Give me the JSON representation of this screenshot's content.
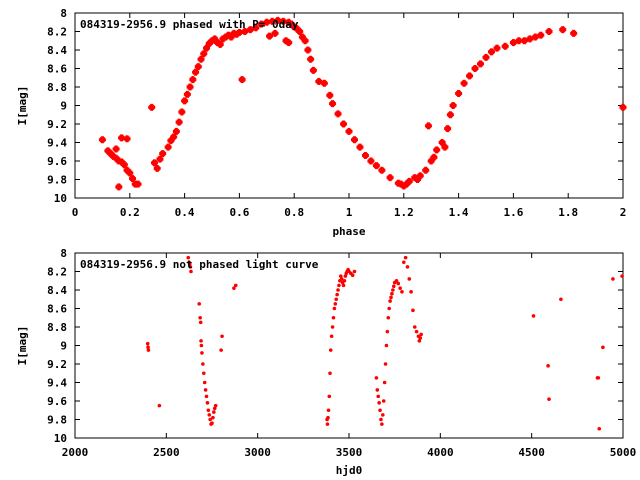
{
  "chart_data": [
    {
      "type": "scatter",
      "title": "084319-2956.9 phased with P= 0day",
      "xlabel": "phase",
      "ylabel": "I[mag]",
      "xlim": [
        0,
        2
      ],
      "ylim": [
        10,
        8
      ],
      "y_inverted": true,
      "x_ticks": [
        "0",
        "0.2",
        "0.4",
        "0.6",
        "0.8",
        "1",
        "1.2",
        "1.4",
        "1.6",
        "1.8",
        "2"
      ],
      "y_ticks": [
        "8",
        "8.2",
        "8.4",
        "8.6",
        "8.8",
        "9",
        "9.2",
        "9.4",
        "9.6",
        "9.8",
        "10"
      ],
      "marker_color": "#ff0000",
      "marker": "filled-plus",
      "grid": false,
      "series": [
        {
          "x": [
            0.1,
            0.12,
            0.13,
            0.14,
            0.15,
            0.15,
            0.16,
            0.17,
            0.16,
            0.18,
            0.19,
            0.2,
            0.21,
            0.22,
            0.17,
            0.19,
            0.23,
            0.28,
            0.29,
            0.3,
            0.31,
            0.32,
            0.34,
            0.35,
            0.36,
            0.37,
            0.38,
            0.39,
            0.4,
            0.41,
            0.42,
            0.43,
            0.44,
            0.45,
            0.46,
            0.47,
            0.48,
            0.49,
            0.5,
            0.51,
            0.52,
            0.53,
            0.54,
            0.55,
            0.56,
            0.57,
            0.58,
            0.59,
            0.6,
            0.62,
            0.64,
            0.66,
            0.68,
            0.7,
            0.72,
            0.74,
            0.76,
            0.78,
            0.79,
            0.8,
            0.81,
            0.82,
            0.83,
            0.84,
            0.85,
            0.86,
            0.87,
            0.89,
            0.91,
            0.93,
            0.94,
            0.96,
            0.98,
            1.0,
            1.02,
            1.04,
            1.06,
            1.08,
            1.1,
            1.12,
            1.15,
            1.18,
            1.2,
            1.22,
            1.24,
            1.26,
            1.28,
            1.29,
            1.3,
            1.31,
            1.32,
            1.34,
            1.36,
            1.37,
            1.38,
            1.4,
            1.42,
            1.44,
            1.46,
            1.48,
            1.5,
            1.52,
            1.54,
            1.57,
            1.6,
            1.62,
            1.64,
            1.66,
            1.68,
            1.7,
            1.73,
            1.78,
            1.82,
            2.0,
            0.61,
            0.71,
            0.73,
            0.77,
            0.78,
            1.19,
            1.21,
            1.25,
            1.35
          ],
          "y": [
            9.37,
            9.49,
            9.52,
            9.55,
            9.47,
            9.57,
            9.6,
            9.61,
            9.88,
            9.64,
            9.7,
            9.73,
            9.79,
            9.85,
            9.35,
            9.36,
            9.85,
            9.02,
            9.62,
            9.68,
            9.58,
            9.52,
            9.45,
            9.38,
            9.34,
            9.28,
            9.18,
            9.07,
            8.95,
            8.88,
            8.8,
            8.72,
            8.64,
            8.58,
            8.5,
            8.44,
            8.38,
            8.33,
            8.3,
            8.28,
            8.32,
            8.34,
            8.28,
            8.26,
            8.24,
            8.26,
            8.22,
            8.23,
            8.21,
            8.2,
            8.18,
            8.16,
            8.12,
            8.1,
            8.09,
            8.08,
            8.09,
            8.1,
            8.12,
            8.15,
            8.17,
            8.2,
            8.26,
            8.3,
            8.4,
            8.5,
            8.62,
            8.74,
            8.76,
            8.89,
            8.98,
            9.09,
            9.2,
            9.28,
            9.37,
            9.45,
            9.54,
            9.6,
            9.65,
            9.7,
            9.78,
            9.84,
            9.87,
            9.82,
            9.78,
            9.76,
            9.7,
            9.22,
            9.6,
            9.56,
            9.48,
            9.4,
            9.25,
            9.1,
            9.0,
            8.87,
            8.76,
            8.68,
            8.6,
            8.55,
            8.48,
            8.42,
            8.38,
            8.36,
            8.32,
            8.3,
            8.3,
            8.28,
            8.26,
            8.24,
            8.2,
            8.18,
            8.22,
            9.02,
            8.72,
            8.25,
            8.22,
            8.3,
            8.32,
            9.85,
            9.85,
            9.8,
            9.45
          ]
        }
      ]
    },
    {
      "type": "scatter",
      "title": "084319-2956.9 not phased light curve",
      "xlabel": "hjd0",
      "ylabel": "I[mag]",
      "xlim": [
        2000,
        5000
      ],
      "ylim": [
        10,
        8
      ],
      "y_inverted": true,
      "x_ticks": [
        "2000",
        "2500",
        "3000",
        "3500",
        "4000",
        "4500",
        "5000"
      ],
      "y_ticks": [
        "8",
        "8.2",
        "8.4",
        "8.6",
        "8.8",
        "9",
        "9.2",
        "9.4",
        "9.6",
        "9.8",
        "10"
      ],
      "marker_color": "#ff0000",
      "marker": "filled-circle-small",
      "grid": false,
      "series": [
        {
          "x": [
            2398,
            2400,
            2402,
            2462,
            2620,
            2625,
            2628,
            2632,
            2635,
            2680,
            2685,
            2688,
            2690,
            2692,
            2695,
            2700,
            2705,
            2710,
            2715,
            2720,
            2725,
            2730,
            2735,
            2740,
            2745,
            2750,
            2755,
            2760,
            2765,
            2770,
            2800,
            2805,
            2870,
            2880,
            3380,
            3382,
            3385,
            3388,
            3392,
            3396,
            3400,
            3405,
            3410,
            3415,
            3420,
            3425,
            3430,
            3435,
            3440,
            3445,
            3450,
            3455,
            3460,
            3465,
            3470,
            3475,
            3480,
            3485,
            3490,
            3495,
            3500,
            3510,
            3520,
            3530,
            3650,
            3655,
            3660,
            3665,
            3670,
            3675,
            3680,
            3685,
            3690,
            3695,
            3700,
            3705,
            3710,
            3715,
            3720,
            3725,
            3730,
            3735,
            3740,
            3745,
            3750,
            3760,
            3770,
            3780,
            3790,
            3800,
            3810,
            3820,
            3830,
            3840,
            3850,
            3860,
            3870,
            3880,
            3885,
            3890,
            3895,
            4510,
            4590,
            4595,
            4660,
            4860,
            4865,
            4870,
            4890,
            4945,
            4995
          ],
          "y": [
            8.98,
            9.02,
            9.05,
            9.65,
            8.05,
            8.1,
            8.12,
            8.15,
            8.2,
            8.55,
            8.7,
            8.75,
            8.95,
            9.0,
            9.08,
            9.2,
            9.3,
            9.4,
            9.48,
            9.55,
            9.62,
            9.7,
            9.75,
            9.8,
            9.85,
            9.84,
            9.78,
            9.72,
            9.68,
            9.65,
            9.05,
            8.9,
            8.38,
            8.35,
            9.8,
            9.85,
            9.78,
            9.7,
            9.55,
            9.3,
            9.05,
            8.9,
            8.8,
            8.7,
            8.6,
            8.55,
            8.5,
            8.45,
            8.4,
            8.35,
            8.3,
            8.25,
            8.28,
            8.32,
            8.35,
            8.3,
            8.25,
            8.22,
            8.2,
            8.18,
            8.2,
            8.22,
            8.24,
            8.2,
            9.35,
            9.48,
            9.55,
            9.62,
            9.7,
            9.8,
            9.85,
            9.75,
            9.6,
            9.4,
            9.2,
            9.0,
            8.85,
            8.7,
            8.6,
            8.52,
            8.48,
            8.44,
            8.4,
            8.36,
            8.32,
            8.3,
            8.33,
            8.38,
            8.42,
            8.1,
            8.05,
            8.15,
            8.28,
            8.42,
            8.62,
            8.8,
            8.85,
            8.9,
            8.95,
            8.92,
            8.88,
            8.68,
            9.22,
            9.58,
            8.5,
            9.35,
            9.35,
            9.9,
            9.02,
            8.28,
            8.25
          ]
        }
      ]
    }
  ]
}
